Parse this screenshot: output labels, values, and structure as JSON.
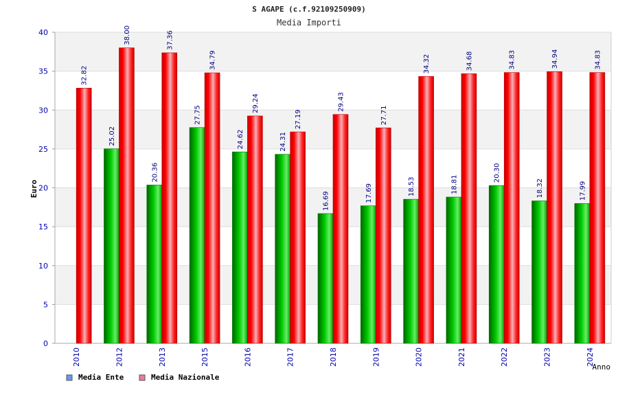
{
  "chart_data": {
    "type": "bar",
    "title": "S AGAPE (c.f.92109250909)",
    "subtitle": "Media Importi",
    "xlabel": "Anno",
    "ylabel": "Euro",
    "ylim": [
      0,
      40
    ],
    "yticks": [
      "0",
      "5",
      "10",
      "15",
      "20",
      "25",
      "30",
      "35",
      "40"
    ],
    "categories": [
      "2010",
      "2012",
      "2013",
      "2015",
      "2016",
      "2017",
      "2018",
      "2019",
      "2020",
      "2021",
      "2022",
      "2023",
      "2024"
    ],
    "series": [
      {
        "name": "Media Ente",
        "color": "#00b000",
        "values": [
          null,
          25.02,
          20.36,
          27.75,
          24.62,
          24.31,
          16.69,
          17.69,
          18.53,
          18.81,
          20.3,
          18.32,
          17.99
        ],
        "labels": [
          "",
          "25.02",
          "20.36",
          "27.75",
          "24.62",
          "24.31",
          "16.69",
          "17.69",
          "18.53",
          "18.81",
          "20.30",
          "18.32",
          "17.99"
        ]
      },
      {
        "name": "Media Nazionale",
        "color": "#e00000",
        "values": [
          32.82,
          38.0,
          37.36,
          34.79,
          29.24,
          27.19,
          29.43,
          27.71,
          34.32,
          34.68,
          34.83,
          34.94,
          34.83
        ],
        "labels": [
          "32.82",
          "38.00",
          "37.36",
          "34.79",
          "29.24",
          "27.19",
          "29.43",
          "27.71",
          "34.32",
          "34.68",
          "34.83",
          "34.94",
          "34.83"
        ]
      }
    ],
    "legend": [
      {
        "label": "Media Ente",
        "color": "#6699ee"
      },
      {
        "label": "Media Nazionale",
        "color": "#ee77aa"
      }
    ],
    "grid": true
  }
}
